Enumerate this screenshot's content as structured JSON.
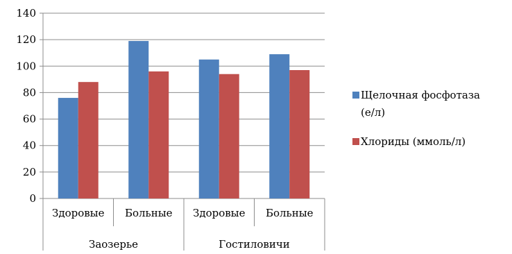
{
  "chart_data": {
    "type": "bar",
    "title": "",
    "xlabel": "",
    "ylabel": "",
    "ylim": [
      0,
      140
    ],
    "yticks": [
      0,
      20,
      40,
      60,
      80,
      100,
      120,
      140
    ],
    "grid": true,
    "legend_position": "right",
    "categories": [
      "Здоровые",
      "Больные",
      "Здоровые",
      "Больные"
    ],
    "groups": [
      "Заозерье",
      "Гостиловичи"
    ],
    "series": [
      {
        "name": "Щелочная фосфотаза (е/л)",
        "legend_lines": [
          "Щелочная фосфотаза",
          "(е/л)"
        ],
        "color": "#4f81bd",
        "values": [
          76,
          119,
          105,
          109
        ]
      },
      {
        "name": "Хлориды (ммоль/л)",
        "legend_lines": [
          "Хлориды (ммоль/л)"
        ],
        "color": "#c0504d",
        "values": [
          88,
          96,
          94,
          97
        ]
      }
    ]
  }
}
